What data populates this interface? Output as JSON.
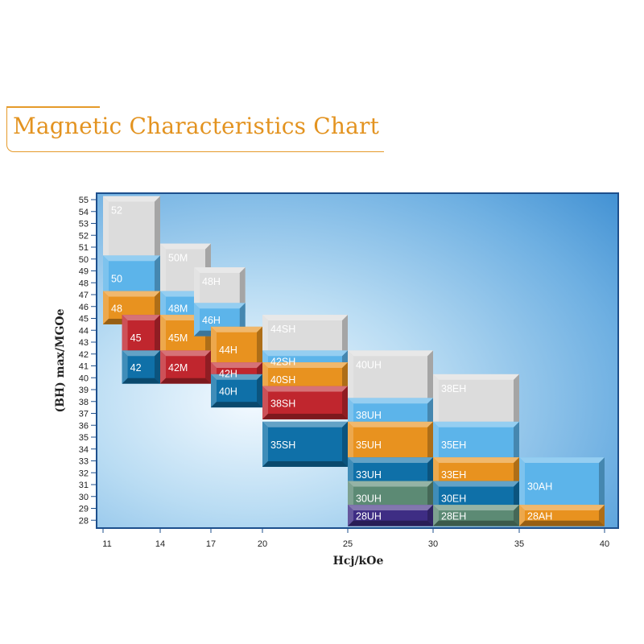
{
  "title": "Magnetic Characteristics Chart",
  "colors": {
    "title": "#e39320",
    "gray": "#dcdcdc",
    "lightblue": "#5cb4ea",
    "orange": "#e8921f",
    "red": "#c0262e",
    "blue": "#0f70a8",
    "green": "#5c8a74",
    "purple": "#3e2d84"
  },
  "chart_data": {
    "type": "bar",
    "xlabel": "Hcj/kOe",
    "ylabel": "(BH) max/MGOe",
    "xticks": [
      11,
      14,
      17,
      20,
      25,
      30,
      35,
      40
    ],
    "xlim": [
      11,
      40
    ],
    "ylim": [
      27.5,
      55.5
    ],
    "yticks": [
      28,
      29,
      30,
      31,
      32,
      33,
      34,
      35,
      36,
      37,
      38,
      39,
      40,
      41,
      42,
      43,
      44,
      45,
      46,
      47,
      48,
      49,
      50,
      51,
      52,
      53,
      54,
      55
    ],
    "grades": [
      {
        "label": "52",
        "x": [
          11,
          14
        ],
        "y": [
          50,
          55
        ],
        "color": "gray"
      },
      {
        "label": "50",
        "x": [
          11,
          14
        ],
        "y": [
          47,
          50
        ],
        "color": "lightblue"
      },
      {
        "label": "48",
        "x": [
          11,
          14
        ],
        "y": [
          45,
          47
        ],
        "color": "orange"
      },
      {
        "label": "45",
        "x": [
          12,
          14
        ],
        "y": [
          42,
          45
        ],
        "color": "red"
      },
      {
        "label": "42",
        "x": [
          12,
          14
        ],
        "y": [
          40,
          42
        ],
        "color": "blue"
      },
      {
        "label": "50M",
        "x": [
          14,
          17
        ],
        "y": [
          47,
          51
        ],
        "color": "gray"
      },
      {
        "label": "48M",
        "x": [
          14,
          17
        ],
        "y": [
          45,
          47
        ],
        "color": "lightblue"
      },
      {
        "label": "45M",
        "x": [
          14,
          17
        ],
        "y": [
          42,
          45
        ],
        "color": "orange"
      },
      {
        "label": "42M",
        "x": [
          14,
          17
        ],
        "y": [
          40,
          42
        ],
        "color": "red"
      },
      {
        "label": "48H",
        "x": [
          16,
          19
        ],
        "y": [
          46,
          49
        ],
        "color": "gray"
      },
      {
        "label": "46H",
        "x": [
          16,
          19
        ],
        "y": [
          44,
          46
        ],
        "color": "lightblue"
      },
      {
        "label": "44H",
        "x": [
          17,
          20
        ],
        "y": [
          41,
          44
        ],
        "color": "orange"
      },
      {
        "label": "42H",
        "x": [
          17,
          20
        ],
        "y": [
          40,
          41
        ],
        "color": "red"
      },
      {
        "label": "40H",
        "x": [
          17,
          20
        ],
        "y": [
          38,
          40
        ],
        "color": "blue"
      },
      {
        "label": "44SH",
        "x": [
          20,
          25
        ],
        "y": [
          42,
          45
        ],
        "color": "gray"
      },
      {
        "label": "42SH",
        "x": [
          20,
          25
        ],
        "y": [
          41,
          42
        ],
        "color": "lightblue"
      },
      {
        "label": "40SH",
        "x": [
          20,
          25
        ],
        "y": [
          39,
          41
        ],
        "color": "orange"
      },
      {
        "label": "38SH",
        "x": [
          20,
          25
        ],
        "y": [
          37,
          39
        ],
        "color": "red"
      },
      {
        "label": "35SH",
        "x": [
          20,
          25
        ],
        "y": [
          33,
          36
        ],
        "color": "blue"
      },
      {
        "label": "40UH",
        "x": [
          25,
          30
        ],
        "y": [
          38,
          42
        ],
        "color": "gray"
      },
      {
        "label": "38UH",
        "x": [
          25,
          30
        ],
        "y": [
          36,
          38
        ],
        "color": "lightblue"
      },
      {
        "label": "35UH",
        "x": [
          25,
          30
        ],
        "y": [
          33,
          36
        ],
        "color": "orange"
      },
      {
        "label": "33UH",
        "x": [
          25,
          30
        ],
        "y": [
          31,
          33
        ],
        "color": "blue"
      },
      {
        "label": "30UH",
        "x": [
          25,
          30
        ],
        "y": [
          29,
          31
        ],
        "color": "green"
      },
      {
        "label": "28UH",
        "x": [
          25,
          30
        ],
        "y": [
          28,
          29
        ],
        "color": "purple"
      },
      {
        "label": "38EH",
        "x": [
          30,
          35
        ],
        "y": [
          36,
          40
        ],
        "color": "gray"
      },
      {
        "label": "35EH",
        "x": [
          30,
          35
        ],
        "y": [
          33,
          36
        ],
        "color": "lightblue"
      },
      {
        "label": "33EH",
        "x": [
          30,
          35
        ],
        "y": [
          31,
          33
        ],
        "color": "orange"
      },
      {
        "label": "30EH",
        "x": [
          30,
          35
        ],
        "y": [
          29,
          31
        ],
        "color": "blue"
      },
      {
        "label": "28EH",
        "x": [
          30,
          35
        ],
        "y": [
          28,
          29
        ],
        "color": "green"
      },
      {
        "label": "30AH",
        "x": [
          35,
          40
        ],
        "y": [
          29,
          33
        ],
        "color": "lightblue"
      },
      {
        "label": "28AH",
        "x": [
          35,
          40
        ],
        "y": [
          28,
          29
        ],
        "color": "orange"
      }
    ]
  }
}
